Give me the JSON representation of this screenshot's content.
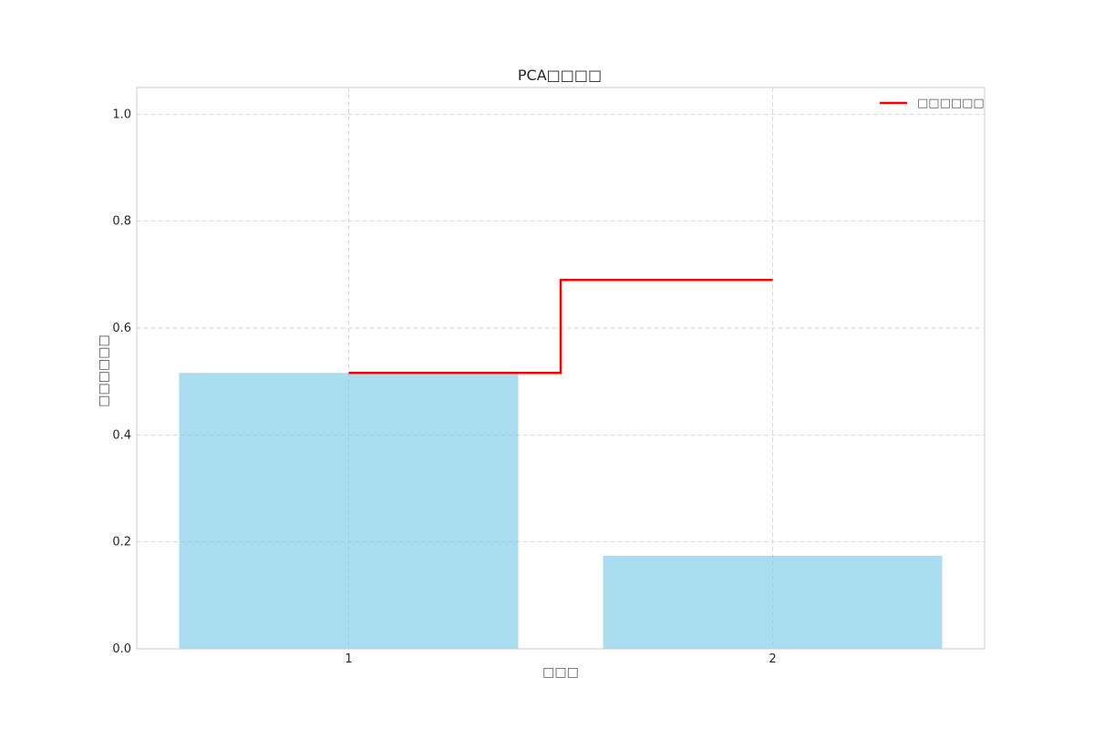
{
  "chart_data": {
    "type": "bar",
    "title": "PCA□□□□",
    "xlabel": "□□□",
    "ylabel": "□□□□□□",
    "categories": [
      "1",
      "2"
    ],
    "series": [
      {
        "type": "bar",
        "values": [
          0.516,
          0.174
        ],
        "color": "#87ceeb"
      },
      {
        "type": "step",
        "name": "□□□□□□",
        "values": [
          0.516,
          0.69
        ],
        "color": "#ff0000"
      }
    ],
    "ylim": [
      0.0,
      1.05
    ],
    "yticks": [
      "0.0",
      "0.2",
      "0.4",
      "0.6",
      "0.8",
      "1.0"
    ],
    "grid": true,
    "legend_position": "top-right"
  }
}
